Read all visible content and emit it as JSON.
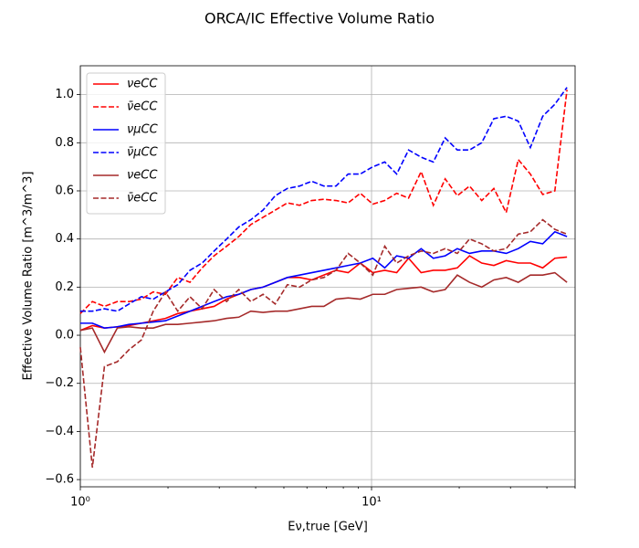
{
  "chart_data": {
    "type": "line",
    "title": "ORCA/IC Effective Volume Ratio",
    "xlabel": "Eν,true [GeV]",
    "ylabel": "Effective Volume Ratio [m^3/m^3]",
    "xscale": "log",
    "grid": true,
    "legend": "upper left",
    "xlim": [
      1,
      50
    ],
    "ylim": [
      -0.63,
      1.12
    ],
    "xticks": [
      {
        "value": 1,
        "label": "10⁰"
      },
      {
        "value": 10,
        "label": "10¹"
      }
    ],
    "yticks": [
      {
        "value": -0.6,
        "label": "−0.6"
      },
      {
        "value": -0.4,
        "label": "−0.4"
      },
      {
        "value": -0.2,
        "label": "−0.2"
      },
      {
        "value": 0,
        "label": "0.0"
      },
      {
        "value": 0.2,
        "label": "0.2"
      },
      {
        "value": 0.4,
        "label": "0.4"
      },
      {
        "value": 0.6,
        "label": "0.6"
      },
      {
        "value": 0.8,
        "label": "0.8"
      },
      {
        "value": 1,
        "label": "1.0"
      }
    ],
    "x": [
      1.0,
      1.1,
      1.21,
      1.34,
      1.47,
      1.62,
      1.78,
      1.96,
      2.16,
      2.38,
      2.62,
      2.88,
      3.18,
      3.5,
      3.85,
      4.24,
      4.67,
      5.14,
      5.66,
      6.23,
      6.86,
      7.55,
      8.31,
      9.15,
      10.1,
      11.1,
      12.2,
      13.4,
      14.8,
      16.3,
      17.9,
      19.7,
      21.7,
      23.9,
      26.3,
      29.0,
      31.9,
      35.1,
      38.7,
      42.6,
      46.9
    ],
    "series": [
      {
        "name": "νeCC",
        "color": "#ff0000",
        "dash": false,
        "values": [
          0.02,
          0.04,
          0.03,
          0.035,
          0.04,
          0.05,
          0.06,
          0.07,
          0.09,
          0.1,
          0.11,
          0.12,
          0.15,
          0.17,
          0.19,
          0.2,
          0.22,
          0.24,
          0.24,
          0.23,
          0.25,
          0.27,
          0.26,
          0.3,
          0.26,
          0.27,
          0.26,
          0.32,
          0.26,
          0.27,
          0.27,
          0.28,
          0.33,
          0.3,
          0.29,
          0.31,
          0.3,
          0.3,
          0.28,
          0.32,
          0.325
        ]
      },
      {
        "name": "ν̄eCC",
        "color": "#ff0000",
        "dash": true,
        "values": [
          0.09,
          0.14,
          0.12,
          0.14,
          0.14,
          0.15,
          0.18,
          0.17,
          0.24,
          0.22,
          0.28,
          0.33,
          0.37,
          0.41,
          0.46,
          0.49,
          0.52,
          0.55,
          0.54,
          0.56,
          0.565,
          0.56,
          0.55,
          0.59,
          0.545,
          0.56,
          0.59,
          0.57,
          0.68,
          0.54,
          0.65,
          0.58,
          0.62,
          0.56,
          0.61,
          0.51,
          0.73,
          0.67,
          0.585,
          0.6,
          1.02
        ]
      },
      {
        "name": "νμCC",
        "color": "#0000ff",
        "dash": false,
        "values": [
          0.05,
          0.05,
          0.03,
          0.035,
          0.045,
          0.05,
          0.055,
          0.06,
          0.08,
          0.1,
          0.12,
          0.14,
          0.16,
          0.17,
          0.19,
          0.2,
          0.22,
          0.24,
          0.25,
          0.26,
          0.27,
          0.28,
          0.29,
          0.3,
          0.32,
          0.28,
          0.33,
          0.32,
          0.36,
          0.32,
          0.33,
          0.36,
          0.34,
          0.35,
          0.35,
          0.34,
          0.36,
          0.39,
          0.38,
          0.43,
          0.41
        ]
      },
      {
        "name": "ν̄μCC",
        "color": "#0000ff",
        "dash": true,
        "values": [
          0.1,
          0.1,
          0.11,
          0.1,
          0.13,
          0.16,
          0.15,
          0.18,
          0.21,
          0.27,
          0.3,
          0.35,
          0.4,
          0.45,
          0.48,
          0.52,
          0.58,
          0.61,
          0.62,
          0.64,
          0.62,
          0.62,
          0.67,
          0.67,
          0.7,
          0.72,
          0.67,
          0.77,
          0.74,
          0.72,
          0.82,
          0.77,
          0.77,
          0.8,
          0.9,
          0.91,
          0.89,
          0.78,
          0.91,
          0.96,
          1.03
        ]
      },
      {
        "name": "νeCC",
        "color": "#a52a2a",
        "dash": false,
        "values": [
          0.02,
          0.03,
          -0.07,
          0.03,
          0.035,
          0.03,
          0.03,
          0.045,
          0.045,
          0.05,
          0.055,
          0.06,
          0.07,
          0.075,
          0.1,
          0.095,
          0.1,
          0.1,
          0.11,
          0.12,
          0.12,
          0.15,
          0.155,
          0.15,
          0.17,
          0.17,
          0.19,
          0.195,
          0.2,
          0.18,
          0.19,
          0.25,
          0.22,
          0.2,
          0.23,
          0.24,
          0.22,
          0.25,
          0.25,
          0.26,
          0.22
        ]
      },
      {
        "name": "ν̄eCC",
        "color": "#a52a2a",
        "dash": true,
        "values": [
          -0.05,
          -0.55,
          -0.13,
          -0.11,
          -0.06,
          -0.02,
          0.1,
          0.18,
          0.1,
          0.16,
          0.11,
          0.19,
          0.14,
          0.19,
          0.14,
          0.17,
          0.13,
          0.21,
          0.2,
          0.23,
          0.24,
          0.27,
          0.34,
          0.3,
          0.25,
          0.37,
          0.3,
          0.33,
          0.35,
          0.34,
          0.36,
          0.34,
          0.4,
          0.38,
          0.35,
          0.36,
          0.42,
          0.43,
          0.48,
          0.44,
          0.42
        ]
      }
    ]
  }
}
